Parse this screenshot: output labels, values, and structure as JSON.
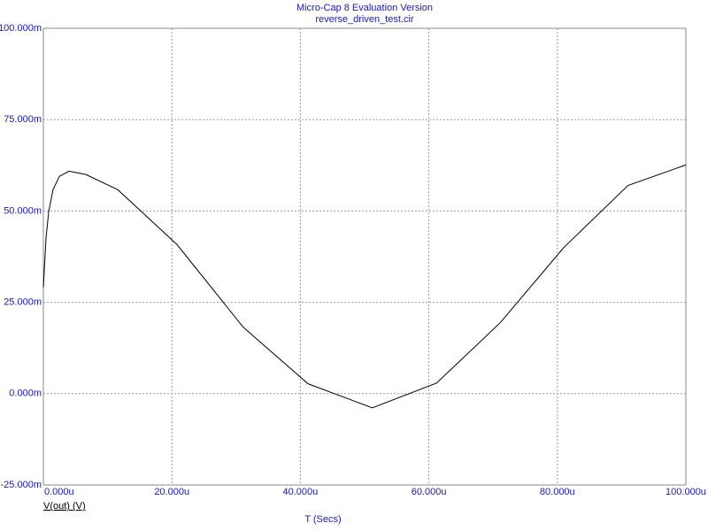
{
  "chart_data": {
    "type": "line",
    "title": "Micro-Cap 8 Evaluation Version",
    "subtitle": "reverse_driven_test.cir",
    "x_label": "T (Secs)",
    "x": [
      0,
      4.1e-07,
      8.3e-07,
      1.5e-06,
      2.5e-06,
      4e-06,
      6.6e-06,
      1.16e-05,
      2.08e-05,
      3.11e-05,
      4.12e-05,
      5.12e-05,
      6.12e-05,
      7.11e-05,
      8.1e-05,
      9.1e-05,
      0.0001
    ],
    "series": [
      {
        "name": "V(out) (V)",
        "color": "#000000",
        "values": [
          0.0291,
          0.0425,
          0.0498,
          0.0558,
          0.0595,
          0.0609,
          0.06,
          0.0558,
          0.0408,
          0.0182,
          0.0027,
          -0.0039,
          0.0029,
          0.0194,
          0.04,
          0.057,
          0.0626
        ]
      }
    ],
    "xlim": [
      0,
      0.0001
    ],
    "xticks": [
      {
        "value": 0,
        "label": "0.000u"
      },
      {
        "value": 2e-05,
        "label": "20.000u"
      },
      {
        "value": 4e-05,
        "label": "40.000u"
      },
      {
        "value": 6e-05,
        "label": "60.000u"
      },
      {
        "value": 8e-05,
        "label": "80.000u"
      },
      {
        "value": 0.0001,
        "label": "100.000u"
      }
    ],
    "ylim": [
      -0.025,
      0.1
    ],
    "yticks": [
      {
        "value": -0.025,
        "label": "-25.000m"
      },
      {
        "value": 0,
        "label": "0.000m"
      },
      {
        "value": 0.025,
        "label": "25.000m"
      },
      {
        "value": 0.05,
        "label": "50.000m"
      },
      {
        "value": 0.075,
        "label": "75.000m"
      },
      {
        "value": 0.1,
        "label": "100.000m"
      }
    ],
    "grid": true
  }
}
